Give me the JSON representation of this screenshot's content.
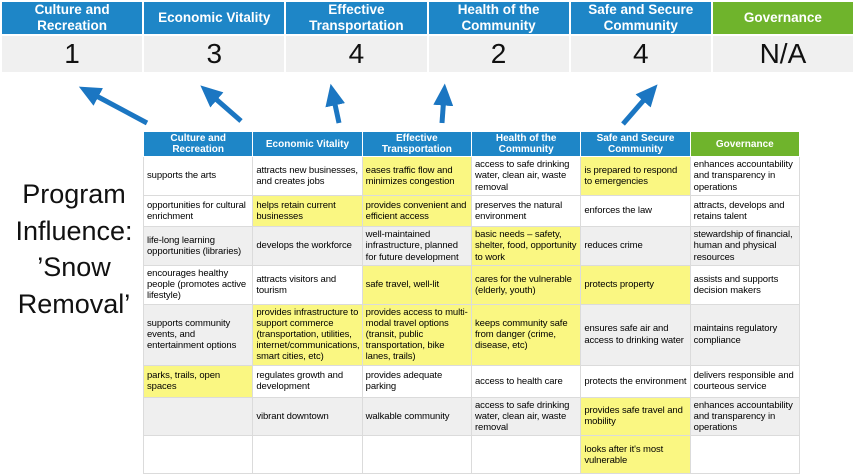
{
  "colors": {
    "header_blue": "#1E86C7",
    "header_green": "#6FB42C",
    "score_band_bg": "#F0F0F0",
    "highlight_yellow": "#FAF782",
    "stripe_gray": "#EFEFEF",
    "arrow_blue": "#1B76C2"
  },
  "program_label": {
    "text": "Program\nInfluence:\n’Snow\nRemoval’"
  },
  "score_band": {
    "columns": [
      {
        "label": "Culture and\nRecreation",
        "score": "1",
        "type": "blue"
      },
      {
        "label": "Economic Vitality",
        "score": "3",
        "type": "blue"
      },
      {
        "label": "Effective\nTransportation",
        "score": "4",
        "type": "blue"
      },
      {
        "label": "Health of the\nCommunity",
        "score": "2",
        "type": "blue"
      },
      {
        "label": "Safe and Secure\nCommunity",
        "score": "4",
        "type": "blue"
      },
      {
        "label": "Governance",
        "score": "N/A",
        "type": "green"
      }
    ]
  },
  "matrix": {
    "headers": [
      {
        "label": "Culture and Recreation",
        "type": "blue"
      },
      {
        "label": "Economic Vitality",
        "type": "blue"
      },
      {
        "label": "Effective Transportation",
        "type": "blue"
      },
      {
        "label": "Health of the Community",
        "type": "blue"
      },
      {
        "label": "Safe and Secure\nCommunity",
        "type": "blue"
      },
      {
        "label": "Governance",
        "type": "green"
      }
    ],
    "rows": [
      {
        "striped": false,
        "cells": [
          {
            "text": "supports the arts",
            "hl": false
          },
          {
            "text": "attracts new businesses, and creates jobs",
            "hl": false
          },
          {
            "text": "eases traffic flow and minimizes congestion",
            "hl": true
          },
          {
            "text": "access to safe drinking water, clean air, waste removal",
            "hl": false
          },
          {
            "text": "is prepared to respond to emergencies",
            "hl": true
          },
          {
            "text": "enhances accountability and transparency in operations",
            "hl": false
          }
        ]
      },
      {
        "striped": false,
        "cells": [
          {
            "text": "opportunities for cultural enrichment",
            "hl": false
          },
          {
            "text": "helps retain current businesses",
            "hl": true
          },
          {
            "text": "provides convenient and efficient access",
            "hl": true
          },
          {
            "text": "preserves the natural environment",
            "hl": false
          },
          {
            "text": "enforces the law",
            "hl": false
          },
          {
            "text": "attracts, develops and retains talent",
            "hl": false
          }
        ]
      },
      {
        "striped": true,
        "cells": [
          {
            "text": "life-long learning opportunities (libraries)",
            "hl": false
          },
          {
            "text": "develops the workforce",
            "hl": false
          },
          {
            "text": "well-maintained infrastructure, planned for future development",
            "hl": false
          },
          {
            "text": "basic needs – safety, shelter, food, opportunity to work",
            "hl": true
          },
          {
            "text": "reduces crime",
            "hl": false
          },
          {
            "text": "stewardship of financial, human and physical resources",
            "hl": false
          }
        ]
      },
      {
        "striped": false,
        "cells": [
          {
            "text": "encourages healthy people (promotes active lifestyle)",
            "hl": false
          },
          {
            "text": "attracts visitors and tourism",
            "hl": false
          },
          {
            "text": "safe travel, well-lit",
            "hl": true
          },
          {
            "text": "cares for the vulnerable (elderly, youth)",
            "hl": true
          },
          {
            "text": "protects property",
            "hl": true
          },
          {
            "text": "assists and supports decision makers",
            "hl": false
          }
        ]
      },
      {
        "striped": true,
        "cells": [
          {
            "text": "supports community events, and entertainment options",
            "hl": false
          },
          {
            "text": "provides infrastructure to support commerce (transportation, utilities, internet/communications, smart cities, etc)",
            "hl": true
          },
          {
            "text": "provides access to multi-modal travel options (transit, public transportation, bike lanes, trails)",
            "hl": true
          },
          {
            "text": "keeps community safe from danger (crime, disease, etc)",
            "hl": true
          },
          {
            "text": "ensures safe air and access to drinking water",
            "hl": false
          },
          {
            "text": "maintains regulatory compliance",
            "hl": false
          }
        ]
      },
      {
        "striped": false,
        "cells": [
          {
            "text": "parks, trails, open spaces",
            "hl": true
          },
          {
            "text": "regulates growth and development",
            "hl": false
          },
          {
            "text": "provides adequate parking",
            "hl": false
          },
          {
            "text": "access to health care",
            "hl": false
          },
          {
            "text": "protects the environment",
            "hl": false
          },
          {
            "text": "delivers responsible and courteous service",
            "hl": false
          }
        ]
      },
      {
        "striped": true,
        "cells": [
          {
            "text": "",
            "hl": false
          },
          {
            "text": "vibrant downtown",
            "hl": false
          },
          {
            "text": "walkable community",
            "hl": false
          },
          {
            "text": "access to safe drinking water, clean air, waste removal",
            "hl": false
          },
          {
            "text": "provides safe travel and mobility",
            "hl": true
          },
          {
            "text": "enhances accountability and transparency in operations",
            "hl": false
          }
        ]
      },
      {
        "striped": false,
        "cells": [
          {
            "text": "",
            "hl": false
          },
          {
            "text": "",
            "hl": false
          },
          {
            "text": "",
            "hl": false
          },
          {
            "text": "",
            "hl": false
          },
          {
            "text": "looks after it's most vulnerable",
            "hl": true
          },
          {
            "text": "",
            "hl": false
          }
        ]
      }
    ]
  }
}
